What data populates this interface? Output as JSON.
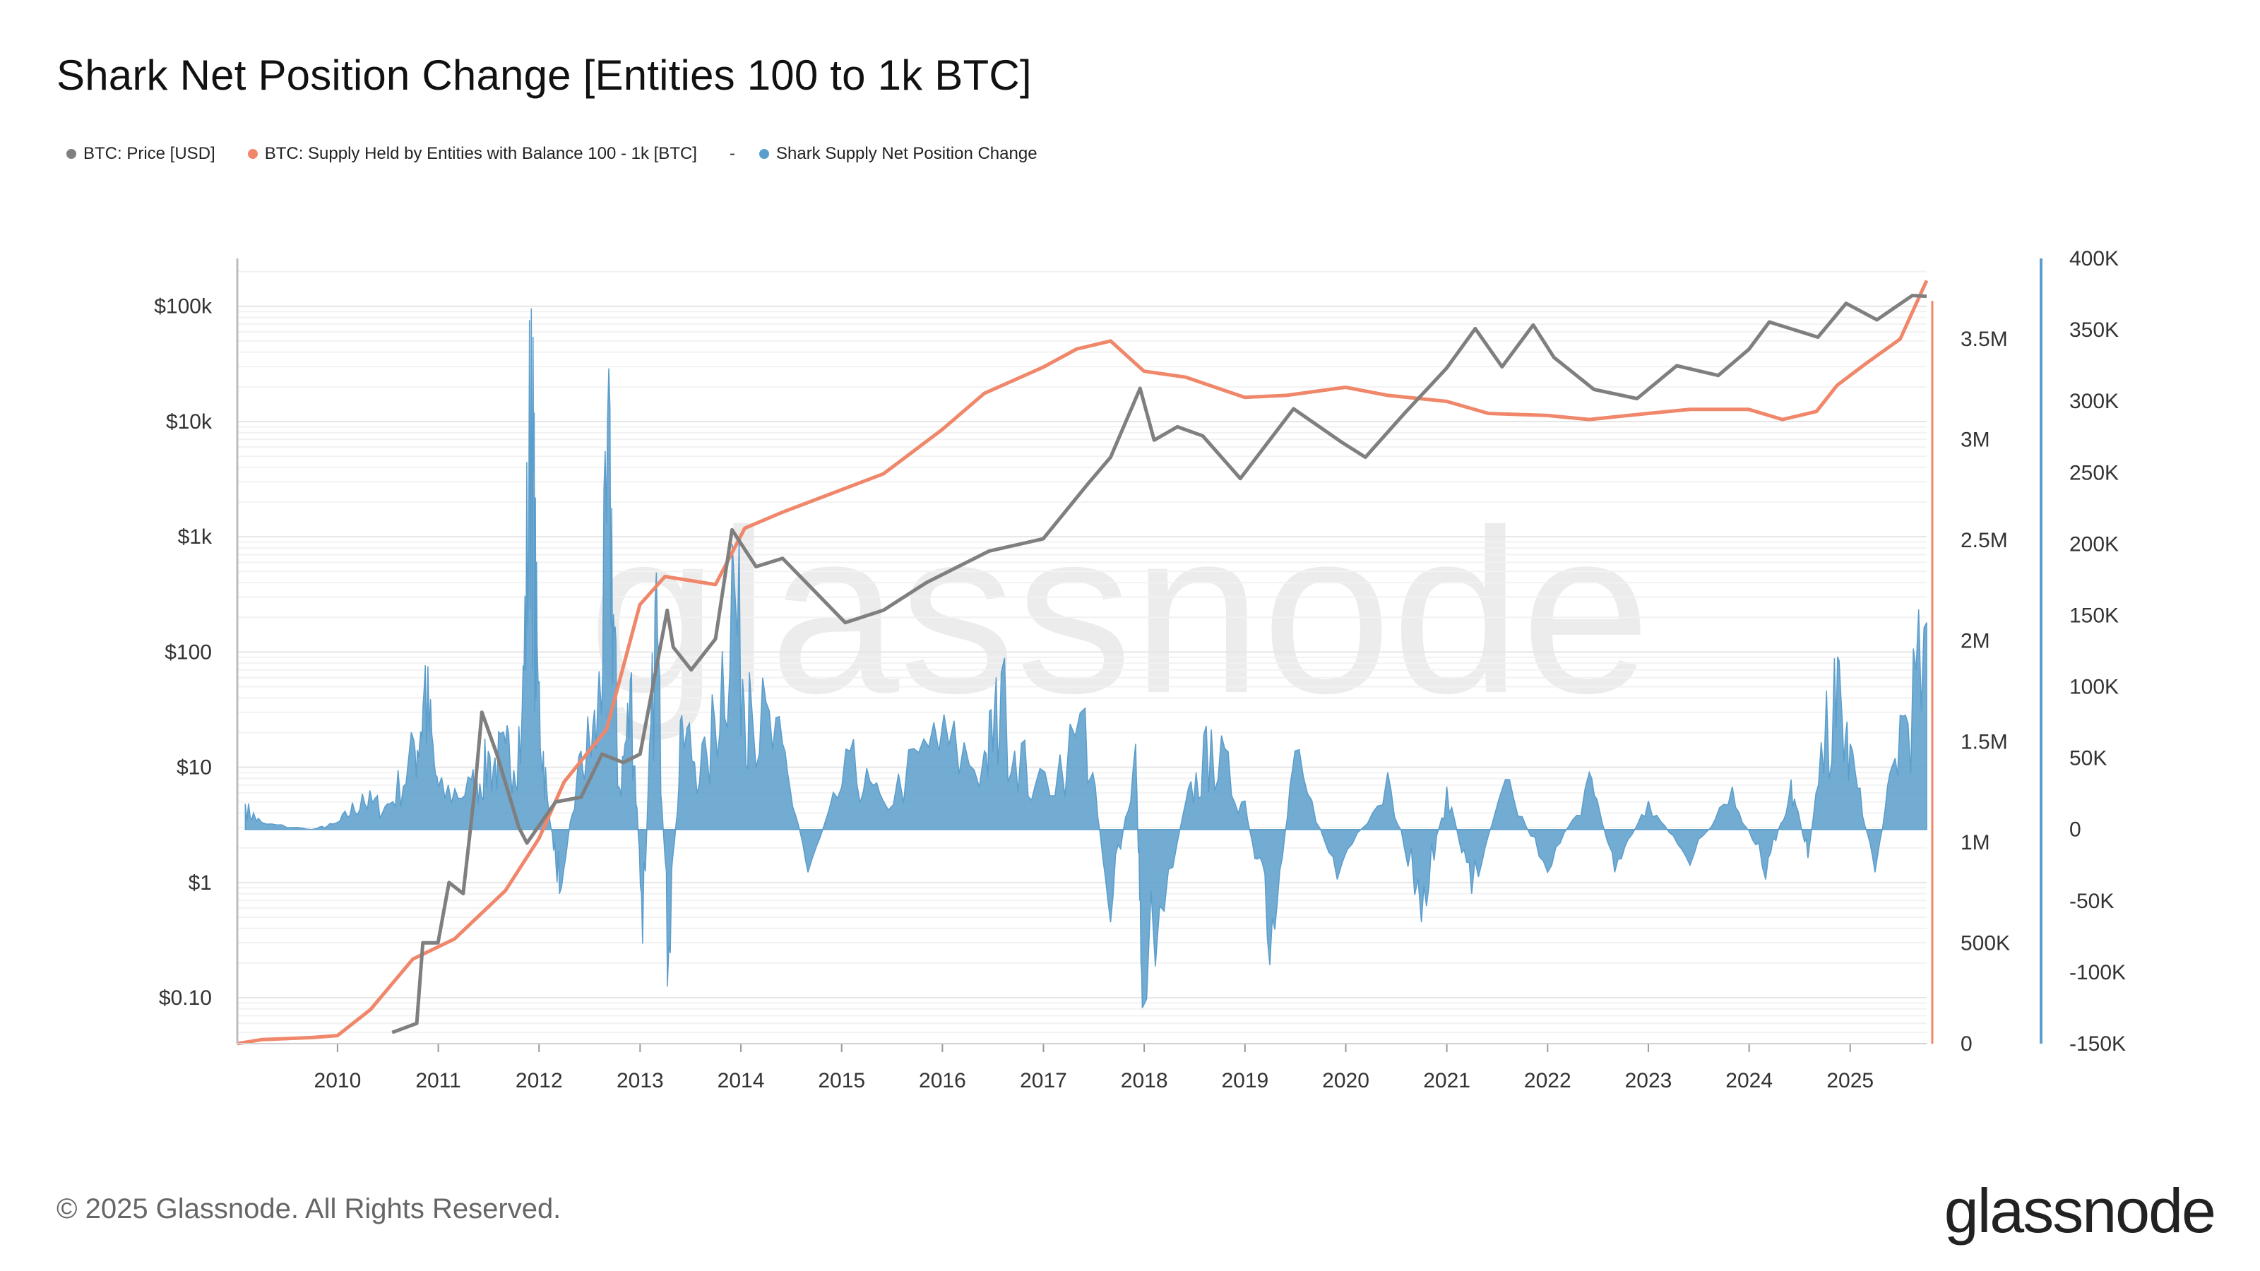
{
  "title": "Shark Net Position Change [Entities 100 to 1k BTC]",
  "legend": {
    "price": "BTC: Price [USD]",
    "supply": "BTC: Supply Held by Entities with Balance 100 - 1k [BTC]",
    "separator": "-",
    "netchange": "Shark Supply Net Position Change"
  },
  "colors": {
    "price": "#7f7f7f",
    "supply": "#f0876a",
    "netchange": "#5b9dcb",
    "watermark": "#ececec"
  },
  "watermark": "glassnode",
  "footer": {
    "copyright": "© 2025 Glassnode. All Rights Reserved.",
    "logo": "glassnode"
  },
  "chart_data": {
    "type": "line",
    "x_type": "date",
    "x_range": [
      "2009-01-03",
      "2025-10-05"
    ],
    "x_ticks": [
      "2010",
      "2011",
      "2012",
      "2013",
      "2014",
      "2015",
      "2016",
      "2017",
      "2018",
      "2019",
      "2020",
      "2021",
      "2022",
      "2023",
      "2024",
      "2025"
    ],
    "y_left": {
      "scale": "log",
      "ticks": [
        {
          "value": 0.1,
          "label": "$0.10"
        },
        {
          "value": 1,
          "label": "$1"
        },
        {
          "value": 10,
          "label": "$10"
        },
        {
          "value": 100,
          "label": "$100"
        },
        {
          "value": 1000,
          "label": "$1k"
        },
        {
          "value": 10000,
          "label": "$10k"
        },
        {
          "value": 100000,
          "label": "$100k"
        }
      ],
      "range": [
        0.04,
        260000
      ]
    },
    "y_right1": {
      "scale": "linear",
      "range": [
        0,
        3900000
      ],
      "ticks": [
        {
          "value": 0,
          "label": "0"
        },
        {
          "value": 500000,
          "label": "500K"
        },
        {
          "value": 1000000,
          "label": "1M"
        },
        {
          "value": 1500000,
          "label": "1.5M"
        },
        {
          "value": 2000000,
          "label": "2M"
        },
        {
          "value": 2500000,
          "label": "2.5M"
        },
        {
          "value": 3000000,
          "label": "3M"
        },
        {
          "value": 3500000,
          "label": "3.5M"
        }
      ]
    },
    "y_right2": {
      "scale": "linear",
      "range": [
        -150000,
        400000
      ],
      "ticks": [
        {
          "value": -150000,
          "label": "-150K"
        },
        {
          "value": -100000,
          "label": "-100K"
        },
        {
          "value": -50000,
          "label": "-50K"
        },
        {
          "value": 0,
          "label": "0"
        },
        {
          "value": 50000,
          "label": "50K"
        },
        {
          "value": 100000,
          "label": "100K"
        },
        {
          "value": 150000,
          "label": "150K"
        },
        {
          "value": 200000,
          "label": "200K"
        },
        {
          "value": 250000,
          "label": "250K"
        },
        {
          "value": 300000,
          "label": "300K"
        },
        {
          "value": 350000,
          "label": "350K"
        },
        {
          "value": 400000,
          "label": "400K"
        }
      ]
    },
    "series": [
      {
        "name": "BTC: Price [USD]",
        "axis": "left",
        "points": [
          [
            "2010-07-18",
            0.05
          ],
          [
            "2010-10-15",
            0.06
          ],
          [
            "2010-11-06",
            0.3
          ],
          [
            "2010-12-31",
            0.3
          ],
          [
            "2011-02-09",
            1.0
          ],
          [
            "2011-04-01",
            0.8
          ],
          [
            "2011-05-15",
            7
          ],
          [
            "2011-06-08",
            30
          ],
          [
            "2011-08-01",
            13
          ],
          [
            "2011-10-20",
            3
          ],
          [
            "2011-11-18",
            2.2
          ],
          [
            "2012-03-01",
            5
          ],
          [
            "2012-06-01",
            5.5
          ],
          [
            "2012-08-16",
            13
          ],
          [
            "2012-11-01",
            11
          ],
          [
            "2013-01-01",
            13
          ],
          [
            "2013-04-09",
            230
          ],
          [
            "2013-05-01",
            110
          ],
          [
            "2013-07-05",
            70
          ],
          [
            "2013-10-01",
            130
          ],
          [
            "2013-11-30",
            1150
          ],
          [
            "2014-02-25",
            550
          ],
          [
            "2014-06-01",
            650
          ],
          [
            "2015-01-14",
            180
          ],
          [
            "2015-06-01",
            230
          ],
          [
            "2015-11-04",
            400
          ],
          [
            "2016-06-17",
            750
          ],
          [
            "2016-12-31",
            960
          ],
          [
            "2017-06-12",
            2900
          ],
          [
            "2017-09-01",
            4900
          ],
          [
            "2017-12-17",
            19400
          ],
          [
            "2018-02-06",
            6900
          ],
          [
            "2018-05-01",
            9000
          ],
          [
            "2018-08-01",
            7500
          ],
          [
            "2018-12-15",
            3200
          ],
          [
            "2019-06-26",
            12900
          ],
          [
            "2019-12-18",
            6600
          ],
          [
            "2020-03-12",
            4900
          ],
          [
            "2020-08-01",
            11800
          ],
          [
            "2020-12-31",
            29000
          ],
          [
            "2021-04-14",
            64000
          ],
          [
            "2021-07-20",
            29800
          ],
          [
            "2021-11-10",
            68800
          ],
          [
            "2022-01-24",
            36000
          ],
          [
            "2022-06-18",
            19000
          ],
          [
            "2022-11-21",
            15800
          ],
          [
            "2023-04-14",
            30500
          ],
          [
            "2023-09-11",
            25100
          ],
          [
            "2023-12-31",
            42300
          ],
          [
            "2024-03-14",
            73000
          ],
          [
            "2024-09-06",
            53900
          ],
          [
            "2024-12-17",
            106000
          ],
          [
            "2025-04-08",
            76300
          ],
          [
            "2025-08-14",
            124000
          ],
          [
            "2025-10-05",
            122000
          ]
        ]
      },
      {
        "name": "BTC: Supply Held by Entities with Balance 100 - 1k [BTC]",
        "axis": "right1",
        "points": [
          [
            "2009-01-03",
            0
          ],
          [
            "2009-04-01",
            20000
          ],
          [
            "2009-10-01",
            30000
          ],
          [
            "2010-01-01",
            40000
          ],
          [
            "2010-05-01",
            170000
          ],
          [
            "2010-10-01",
            420000
          ],
          [
            "2011-03-01",
            520000
          ],
          [
            "2011-09-01",
            760000
          ],
          [
            "2012-01-01",
            1020000
          ],
          [
            "2012-04-01",
            1300000
          ],
          [
            "2012-09-01",
            1560000
          ],
          [
            "2012-12-31",
            2180000
          ],
          [
            "2013-04-01",
            2320000
          ],
          [
            "2013-10-01",
            2280000
          ],
          [
            "2014-01-15",
            2560000
          ],
          [
            "2014-06-01",
            2640000
          ],
          [
            "2015-06-01",
            2830000
          ],
          [
            "2015-12-31",
            3050000
          ],
          [
            "2016-06-01",
            3230000
          ],
          [
            "2016-12-31",
            3360000
          ],
          [
            "2017-05-01",
            3450000
          ],
          [
            "2017-09-01",
            3490000
          ],
          [
            "2017-12-31",
            3340000
          ],
          [
            "2018-06-01",
            3310000
          ],
          [
            "2018-12-31",
            3210000
          ],
          [
            "2019-06-01",
            3220000
          ],
          [
            "2019-12-31",
            3260000
          ],
          [
            "2020-06-01",
            3220000
          ],
          [
            "2020-12-31",
            3190000
          ],
          [
            "2021-06-01",
            3130000
          ],
          [
            "2021-12-31",
            3120000
          ],
          [
            "2022-06-01",
            3100000
          ],
          [
            "2022-12-31",
            3130000
          ],
          [
            "2023-06-01",
            3150000
          ],
          [
            "2023-12-31",
            3150000
          ],
          [
            "2024-05-01",
            3100000
          ],
          [
            "2024-09-01",
            3140000
          ],
          [
            "2024-11-15",
            3270000
          ],
          [
            "2025-03-01",
            3380000
          ],
          [
            "2025-07-01",
            3500000
          ],
          [
            "2025-10-05",
            3790000
          ]
        ]
      },
      {
        "name": "Shark Supply Net Position Change",
        "axis": "right2",
        "type": "area",
        "points": [
          [
            "2009-02-01",
            18000
          ],
          [
            "2009-04-01",
            5000
          ],
          [
            "2009-10-01",
            0
          ],
          [
            "2010-01-01",
            5000
          ],
          [
            "2010-04-01",
            25000
          ],
          [
            "2010-07-01",
            18000
          ],
          [
            "2010-10-05",
            62000
          ],
          [
            "2010-11-15",
            115000
          ],
          [
            "2011-01-01",
            30000
          ],
          [
            "2011-05-01",
            35000
          ],
          [
            "2011-07-01",
            55000
          ],
          [
            "2011-09-01",
            60000
          ],
          [
            "2011-11-01",
            85000
          ],
          [
            "2011-12-04",
            365000
          ],
          [
            "2011-12-25",
            130000
          ],
          [
            "2012-02-01",
            20000
          ],
          [
            "2012-03-15",
            -45000
          ],
          [
            "2012-06-01",
            55000
          ],
          [
            "2012-08-01",
            90000
          ],
          [
            "2012-09-14",
            295000
          ],
          [
            "2012-10-15",
            30000
          ],
          [
            "2012-12-01",
            110000
          ],
          [
            "2013-01-10",
            -80000
          ],
          [
            "2013-03-01",
            180000
          ],
          [
            "2013-04-10",
            -110000
          ],
          [
            "2013-06-01",
            80000
          ],
          [
            "2013-09-01",
            50000
          ],
          [
            "2013-12-01",
            200000
          ],
          [
            "2014-02-01",
            110000
          ],
          [
            "2014-06-01",
            60000
          ],
          [
            "2014-09-01",
            -30000
          ],
          [
            "2015-02-01",
            55000
          ],
          [
            "2015-06-01",
            20000
          ],
          [
            "2015-12-01",
            75000
          ],
          [
            "2016-06-01",
            55000
          ],
          [
            "2016-08-01",
            110000
          ],
          [
            "2016-12-01",
            30000
          ],
          [
            "2017-06-01",
            85000
          ],
          [
            "2017-09-01",
            -65000
          ],
          [
            "2017-12-01",
            60000
          ],
          [
            "2017-12-25",
            -125000
          ],
          [
            "2018-06-01",
            20000
          ],
          [
            "2018-09-01",
            70000
          ],
          [
            "2019-01-01",
            20000
          ],
          [
            "2019-04-01",
            -95000
          ],
          [
            "2019-07-01",
            55000
          ],
          [
            "2019-12-01",
            -35000
          ],
          [
            "2020-06-01",
            40000
          ],
          [
            "2020-10-01",
            -65000
          ],
          [
            "2021-01-01",
            30000
          ],
          [
            "2021-04-01",
            -45000
          ],
          [
            "2021-08-01",
            35000
          ],
          [
            "2022-01-01",
            -30000
          ],
          [
            "2022-06-01",
            40000
          ],
          [
            "2022-09-01",
            -30000
          ],
          [
            "2023-01-01",
            20000
          ],
          [
            "2023-06-01",
            -25000
          ],
          [
            "2023-11-01",
            30000
          ],
          [
            "2024-03-01",
            -35000
          ],
          [
            "2024-06-01",
            35000
          ],
          [
            "2024-08-01",
            -20000
          ],
          [
            "2024-11-05",
            120000
          ],
          [
            "2025-01-01",
            60000
          ],
          [
            "2025-04-01",
            -30000
          ],
          [
            "2025-07-01",
            80000
          ],
          [
            "2025-10-05",
            145000
          ]
        ]
      }
    ]
  }
}
